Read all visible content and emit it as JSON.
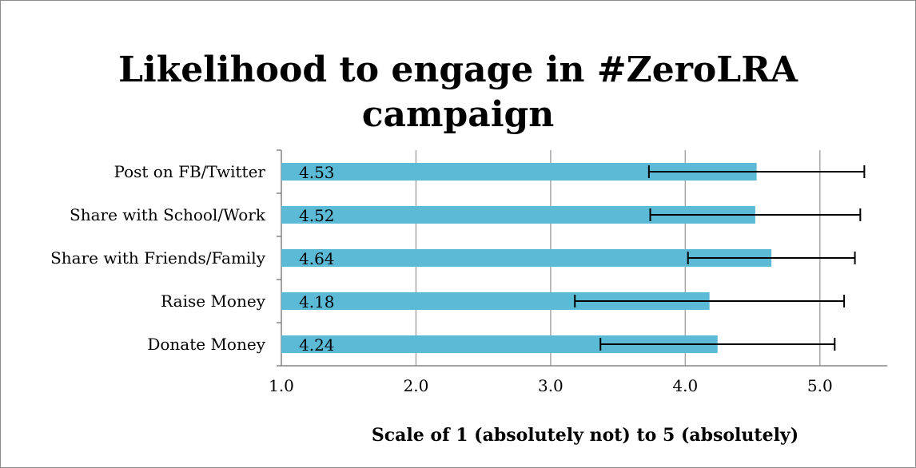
{
  "chart_data": {
    "type": "bar",
    "orientation": "horizontal",
    "title": "Likelihood to engage in #ZeroLRA campaign",
    "title_lines": [
      "Likelihood to engage in #ZeroLRA",
      "campaign"
    ],
    "xlabel": "Scale of 1 (absolutely not) to 5 (absolutely)",
    "ylabel": "",
    "xlim": [
      1.0,
      5.5
    ],
    "xticks": [
      1.0,
      2.0,
      3.0,
      4.0,
      5.0
    ],
    "xtick_labels": [
      "1.0",
      "2.0",
      "3.0",
      "4.0",
      "5.0"
    ],
    "grid": "vertical",
    "bar_color": "#5bbad5",
    "categories": [
      "Post on FB/Twitter",
      "Share with School/Work",
      "Share with Friends/Family",
      "Raise Money",
      "Donate Money"
    ],
    "values": [
      4.53,
      4.52,
      4.64,
      4.18,
      4.24
    ],
    "value_labels": [
      "4.53",
      "4.52",
      "4.64",
      "4.18",
      "4.24"
    ],
    "error": [
      0.8,
      0.78,
      0.62,
      1.0,
      0.87
    ]
  }
}
